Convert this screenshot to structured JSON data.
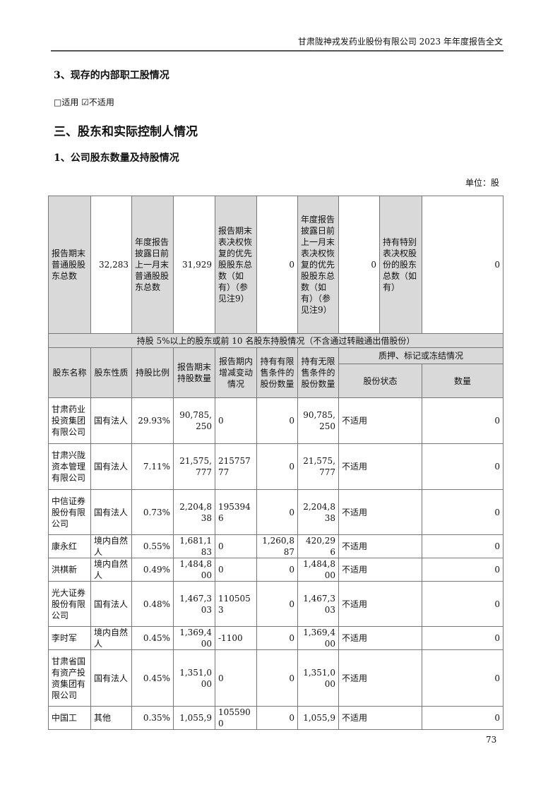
{
  "header": {
    "title": "甘肃陇神戎发药业股份有限公司 2023 年年度报告全文"
  },
  "section3": {
    "title": "3、现存的内部职工股情况",
    "option_applicable": "□适用",
    "option_not_applicable": "☑不适用"
  },
  "chapter": {
    "title": "三、股东和实际控制人情况"
  },
  "section1": {
    "title": "1、公司股东数量及持股情况",
    "unit": "单位：股"
  },
  "summary": [
    {
      "label": "报告期末普通股股东总数",
      "value": "32,283"
    },
    {
      "label": "年度报告披露日前上一月末普通股股东总数",
      "value": "31,929"
    },
    {
      "label": "报告期末表决权恢复的优先股股东总数（如有）（参见注9）",
      "value": "0"
    },
    {
      "label": "年度报告披露日前上一月末表决权恢复的优先股股东总数（如有）（参见注9）",
      "value": "0"
    },
    {
      "label": "持有特别表决权股份的股东总数（如有）",
      "value": "0"
    }
  ],
  "holdings": {
    "band_title": "持股 5%以上的股东或前 10 名股东持股情况（不含通过转融通出借股份）",
    "columns": [
      "股东名称",
      "股东性质",
      "持股比例",
      "报告期末持股数量",
      "报告期内增减变动情况",
      "持有有限售条件的股份数量",
      "持有无限售条件的股份数量"
    ],
    "pledge_group": "质押、标记或冻结情况",
    "pledge_columns": [
      "股份状态",
      "数量"
    ],
    "rows": [
      [
        "甘肃药业投资集团有限公司",
        "国有法人",
        "29.93%",
        "90,785,250",
        "0",
        "0",
        "90,785,250",
        "不适用",
        "0"
      ],
      [
        "甘肃兴陇资本管理有限公司",
        "国有法人",
        "7.11%",
        "21,575,777",
        "21575777",
        "0",
        "21,575,777",
        "不适用",
        "0"
      ],
      [
        "中信证券股份有限公司",
        "国有法人",
        "0.73%",
        "2,204,838",
        "1953946",
        "0",
        "2,204,838",
        "不适用",
        "0"
      ],
      [
        "康永红",
        "境内自然人",
        "0.55%",
        "1,681,183",
        "0",
        "1,260,887",
        "420,296",
        "不适用",
        "0"
      ],
      [
        "洪棋新",
        "境内自然人",
        "0.49%",
        "1,484,800",
        "0",
        "0",
        "1,484,800",
        "不适用",
        "0"
      ],
      [
        "光大证券股份有限公司",
        "国有法人",
        "0.48%",
        "1,467,303",
        "1105053",
        "0",
        "1,467,303",
        "不适用",
        "0"
      ],
      [
        "李时军",
        "境内自然人",
        "0.45%",
        "1,369,400",
        "-1100",
        "0",
        "1,369,400",
        "不适用",
        "0"
      ],
      [
        "甘肃省国有资产投资集团有限公司",
        "国有法人",
        "0.45%",
        "1,351,000",
        "0",
        "0",
        "1,351,000",
        "不适用",
        "0"
      ],
      [
        "中国工",
        "其他",
        "0.35%",
        "1,055,9",
        "1055900",
        "0",
        "1,055,9",
        "不适用",
        "0"
      ]
    ]
  },
  "footer": {
    "page_number": "73"
  }
}
